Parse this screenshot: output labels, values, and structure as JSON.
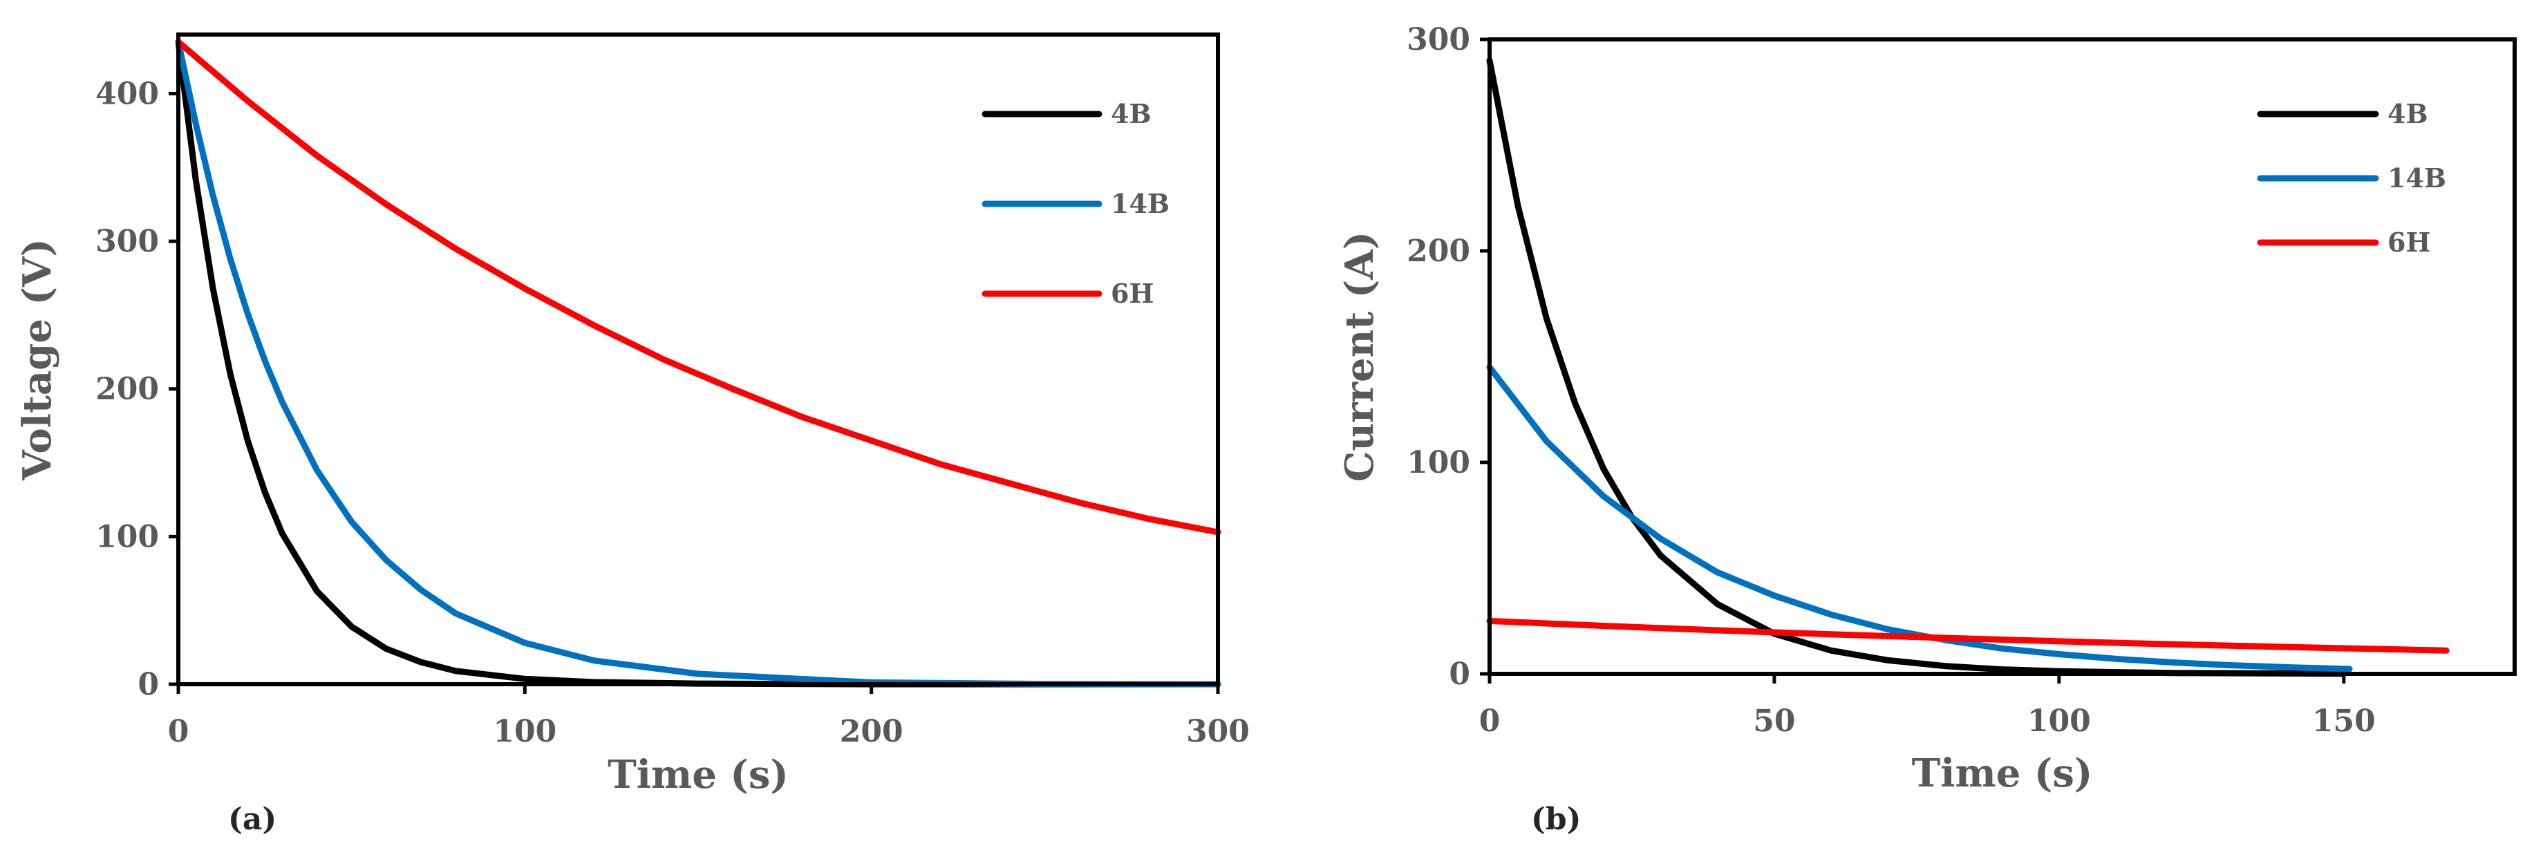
{
  "chart_data": [
    {
      "type": "line",
      "panel_label": "(a)",
      "xlabel": "Time (s)",
      "ylabel": "Voltage (V)",
      "xlim": [
        0,
        300
      ],
      "ylim": [
        0,
        440
      ],
      "xticks": [
        0,
        100,
        200,
        300
      ],
      "yticks": [
        0,
        100,
        200,
        300,
        400
      ],
      "xtick_labels": [
        "0",
        "100",
        "200",
        "300"
      ],
      "ytick_labels": [
        "0",
        "100",
        "200",
        "300",
        "400"
      ],
      "grid": false,
      "legend_position": "top-right",
      "series": [
        {
          "name": "4B",
          "color": "#000000",
          "x": [
            0,
            5,
            10,
            15,
            20,
            25,
            30,
            40,
            50,
            60,
            70,
            80,
            100,
            120,
            150,
            200,
            250,
            300
          ],
          "y": [
            435,
            342,
            268,
            210,
            165,
            130,
            102,
            63,
            39,
            24,
            15,
            9,
            3.6,
            1.4,
            0.4,
            0,
            0,
            0
          ]
        },
        {
          "name": "14B",
          "color": "#0070C0",
          "x": [
            0,
            5,
            10,
            15,
            20,
            25,
            30,
            40,
            50,
            60,
            70,
            80,
            100,
            120,
            150,
            200,
            250,
            300
          ],
          "y": [
            435,
            380,
            331,
            288,
            251,
            219,
            191,
            145,
            110,
            84,
            64,
            48,
            28,
            16,
            7,
            1.2,
            0.2,
            0
          ]
        },
        {
          "name": "6H",
          "color": "#FF0000",
          "x": [
            0,
            20,
            40,
            60,
            80,
            100,
            120,
            140,
            160,
            180,
            200,
            220,
            240,
            260,
            280,
            300
          ],
          "y": [
            435,
            395,
            358,
            325,
            295,
            268,
            243,
            220,
            200,
            181,
            165,
            149,
            136,
            123,
            112,
            103
          ]
        }
      ]
    },
    {
      "type": "line",
      "panel_label": "(b)",
      "xlabel": "Time (s)",
      "ylabel": "Current (A)",
      "xlim": [
        0,
        180
      ],
      "ylim": [
        0,
        300
      ],
      "xticks": [
        0,
        50,
        100,
        150
      ],
      "yticks": [
        0,
        100,
        200,
        300
      ],
      "xtick_labels": [
        "0",
        "50",
        "100",
        "150"
      ],
      "ytick_labels": [
        "0",
        "100",
        "200",
        "300"
      ],
      "grid": false,
      "legend_position": "top-right",
      "series": [
        {
          "name": "4B",
          "color": "#000000",
          "x": [
            0,
            5,
            10,
            15,
            20,
            25,
            30,
            40,
            50,
            60,
            70,
            80,
            90,
            100,
            120,
            150
          ],
          "y": [
            290,
            221,
            168,
            128,
            97,
            74,
            56,
            33,
            19,
            11,
            6.4,
            3.7,
            2.1,
            1.2,
            0.4,
            0.1
          ]
        },
        {
          "name": "14B",
          "color": "#0070C0",
          "x": [
            0,
            10,
            20,
            30,
            40,
            50,
            60,
            70,
            80,
            90,
            100,
            110,
            120,
            130,
            140,
            151
          ],
          "y": [
            145,
            110,
            84,
            64,
            48,
            37,
            28,
            21,
            16,
            12,
            9.3,
            7.1,
            5.4,
            4.1,
            3.1,
            2.3
          ]
        },
        {
          "name": "6H",
          "color": "#FF0000",
          "x": [
            0,
            20,
            40,
            60,
            80,
            100,
            120,
            140,
            160,
            168
          ],
          "y": [
            25,
            22.7,
            20.6,
            18.7,
            17,
            15.4,
            14,
            12.7,
            11.5,
            11
          ]
        }
      ]
    }
  ]
}
